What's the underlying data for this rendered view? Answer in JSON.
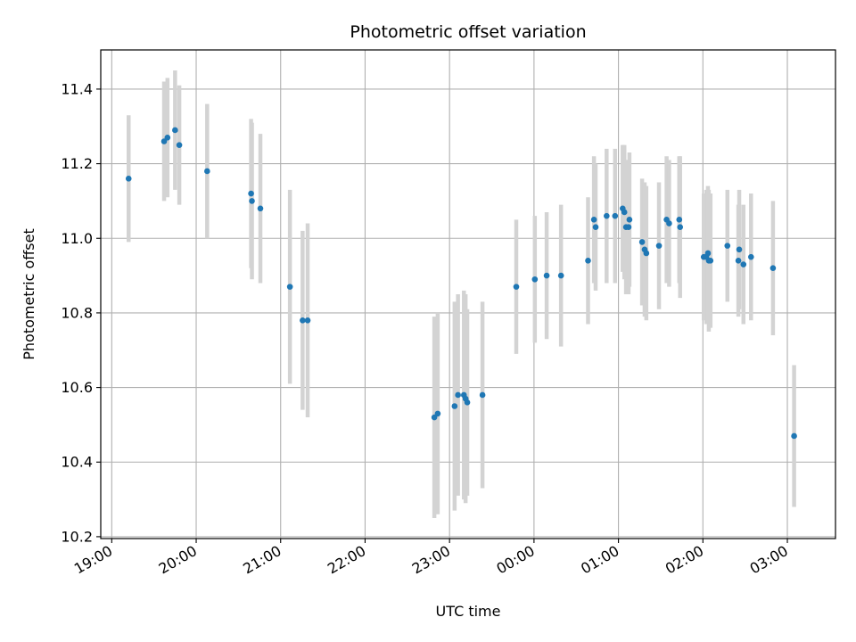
{
  "chart_data": {
    "type": "scatter",
    "title": "Photometric offset variation",
    "xlabel": "UTC time",
    "ylabel": "Photometric offset",
    "grid": true,
    "x_unit": "hours UTC (values past 24 are the following day)",
    "xlim": [
      18.87,
      27.57
    ],
    "ylim": [
      10.195,
      11.505
    ],
    "x_ticks": [
      19,
      20,
      21,
      22,
      23,
      24,
      25,
      26,
      27
    ],
    "x_tick_labels": [
      "19:00",
      "20:00",
      "21:00",
      "22:00",
      "23:00",
      "00:00",
      "01:00",
      "02:00",
      "03:00"
    ],
    "y_ticks": [
      10.2,
      10.4,
      10.6,
      10.8,
      11.0,
      11.2,
      11.4
    ],
    "y_tick_labels": [
      "10.2",
      "10.4",
      "10.6",
      "10.8",
      "11.0",
      "11.2",
      "11.4"
    ],
    "colors": {
      "point": "#1f77b4",
      "errorbar": "#d3d3d3",
      "grid": "#b0b0b0"
    },
    "series": [
      {
        "x": [
          19.2,
          19.62,
          19.66,
          19.75,
          19.8,
          20.13,
          20.65,
          20.66,
          20.76,
          21.11,
          21.26,
          21.32,
          22.82,
          22.86,
          23.06,
          23.1,
          23.17,
          23.19,
          23.21,
          23.39,
          23.79,
          24.01,
          24.15,
          24.32,
          24.64,
          24.71,
          24.73,
          24.86,
          24.96,
          25.05,
          25.07,
          25.09,
          25.12,
          25.13,
          25.28,
          25.31,
          25.33,
          25.48,
          25.57,
          25.6,
          25.72,
          25.73,
          26.01,
          26.04,
          26.06,
          26.07,
          26.09,
          26.29,
          26.42,
          26.43,
          26.48,
          26.57,
          26.83,
          27.08
        ],
        "y": [
          11.16,
          11.26,
          11.27,
          11.29,
          11.25,
          11.18,
          11.12,
          11.1,
          11.08,
          10.87,
          10.78,
          10.78,
          10.52,
          10.53,
          10.55,
          10.58,
          10.58,
          10.57,
          10.56,
          10.58,
          10.87,
          10.89,
          10.9,
          10.9,
          10.94,
          11.05,
          11.03,
          11.06,
          11.06,
          11.08,
          11.07,
          11.03,
          11.03,
          11.05,
          10.99,
          10.97,
          10.96,
          10.98,
          11.05,
          11.04,
          11.05,
          11.03,
          10.95,
          10.95,
          10.96,
          10.94,
          10.94,
          10.98,
          10.94,
          10.97,
          10.93,
          10.95,
          10.92,
          10.47
        ],
        "yerr": [
          0.17,
          0.16,
          0.16,
          0.16,
          0.16,
          0.18,
          0.2,
          0.21,
          0.2,
          0.26,
          0.24,
          0.26,
          0.27,
          0.27,
          0.28,
          0.27,
          0.28,
          0.28,
          0.25,
          0.25,
          0.18,
          0.17,
          0.17,
          0.19,
          0.17,
          0.17,
          0.17,
          0.18,
          0.18,
          0.17,
          0.18,
          0.18,
          0.18,
          0.18,
          0.17,
          0.18,
          0.18,
          0.17,
          0.17,
          0.17,
          0.17,
          0.19,
          0.17,
          0.18,
          0.18,
          0.19,
          0.18,
          0.15,
          0.15,
          0.16,
          0.16,
          0.17,
          0.18,
          0.19
        ]
      }
    ]
  }
}
